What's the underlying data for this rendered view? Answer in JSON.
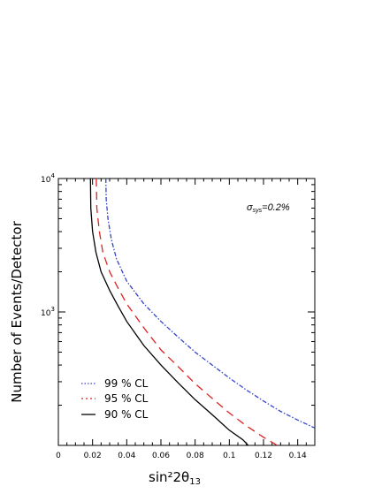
{
  "chart_data": {
    "type": "line",
    "xlabel": "sin²2θ",
    "xlabel_sub": "13",
    "ylabel": "Number of Events/Detector",
    "xlim": [
      0,
      0.15
    ],
    "ylim": [
      100,
      10000
    ],
    "yscale": "log",
    "x_ticks": [
      "0",
      "0.02",
      "0.04",
      "0.06",
      "0.08",
      "0.1",
      "0.12",
      "0.14"
    ],
    "x_tick_values": [
      0,
      0.02,
      0.04,
      0.06,
      0.08,
      0.1,
      0.12,
      0.14
    ],
    "y_tick_labels": [
      {
        "value": 1000,
        "base": "10",
        "exp": "3"
      },
      {
        "value": 10000,
        "base": "10",
        "exp": "4"
      }
    ],
    "grid": false,
    "annotation": {
      "sigma": "σ",
      "sub": "sys",
      "text": "=0.2%"
    },
    "legend_placement": "bottom-left",
    "series": [
      {
        "name": "99 % CL",
        "color": "#3344cc",
        "dash": "dotdash",
        "points": [
          [
            0.0278,
            10000
          ],
          [
            0.028,
            7000
          ],
          [
            0.029,
            5000
          ],
          [
            0.031,
            3500
          ],
          [
            0.034,
            2500
          ],
          [
            0.04,
            1700
          ],
          [
            0.05,
            1150
          ],
          [
            0.06,
            850
          ],
          [
            0.07,
            650
          ],
          [
            0.08,
            500
          ],
          [
            0.09,
            400
          ],
          [
            0.1,
            320
          ],
          [
            0.11,
            260
          ],
          [
            0.12,
            215
          ],
          [
            0.13,
            180
          ],
          [
            0.14,
            155
          ],
          [
            0.15,
            135
          ]
        ]
      },
      {
        "name": "95 % CL",
        "color": "#dd2222",
        "dash": "dashed",
        "points": [
          [
            0.0222,
            10000
          ],
          [
            0.0225,
            6000
          ],
          [
            0.024,
            4000
          ],
          [
            0.026,
            2800
          ],
          [
            0.03,
            2000
          ],
          [
            0.035,
            1500
          ],
          [
            0.04,
            1150
          ],
          [
            0.05,
            760
          ],
          [
            0.06,
            520
          ],
          [
            0.07,
            390
          ],
          [
            0.08,
            290
          ],
          [
            0.09,
            225
          ],
          [
            0.1,
            175
          ],
          [
            0.11,
            140
          ],
          [
            0.12,
            115
          ],
          [
            0.128,
            100
          ]
        ]
      },
      {
        "name": "90 % CL",
        "color": "#000000",
        "dash": "solid",
        "points": [
          [
            0.0188,
            10000
          ],
          [
            0.019,
            6000
          ],
          [
            0.02,
            4000
          ],
          [
            0.022,
            2800
          ],
          [
            0.025,
            2000
          ],
          [
            0.03,
            1450
          ],
          [
            0.035,
            1100
          ],
          [
            0.04,
            850
          ],
          [
            0.05,
            560
          ],
          [
            0.06,
            400
          ],
          [
            0.07,
            295
          ],
          [
            0.08,
            220
          ],
          [
            0.09,
            170
          ],
          [
            0.1,
            130
          ],
          [
            0.108,
            110
          ],
          [
            0.111,
            100
          ]
        ]
      }
    ]
  }
}
